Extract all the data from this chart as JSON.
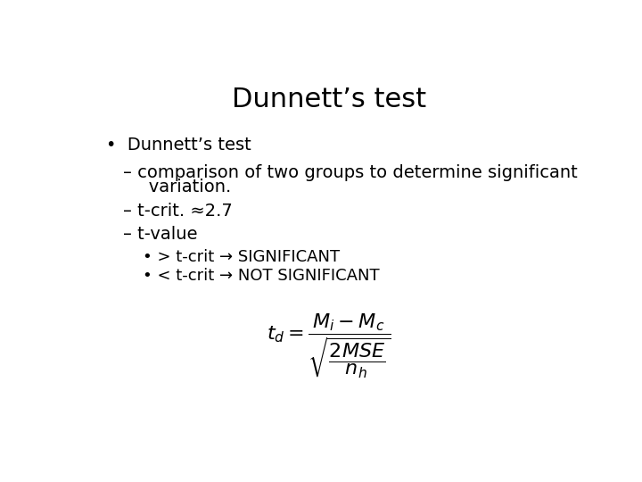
{
  "title": "Dunnett’s test",
  "background_color": "#ffffff",
  "text_color": "#000000",
  "title_fontsize": 22,
  "body_fontsize": 14,
  "sub_fontsize": 13,
  "bullet1": "Dunnett’s test",
  "dash1_line1": "– comparison of two groups to determine significant",
  "dash1_line2": "   variation.",
  "dash2": "– t-crit. ≈2.7",
  "dash3": "– t-value",
  "sub_bullet1": "• > t-crit → SIGNIFICANT",
  "sub_bullet2": "• < t-crit → NOT SIGNIFICANT",
  "formula": "$t_{d} = \\dfrac{M_{i} - M_{c}}{\\sqrt{\\dfrac{2MSE}{n_{h}}}}$",
  "formula_fontsize": 16
}
